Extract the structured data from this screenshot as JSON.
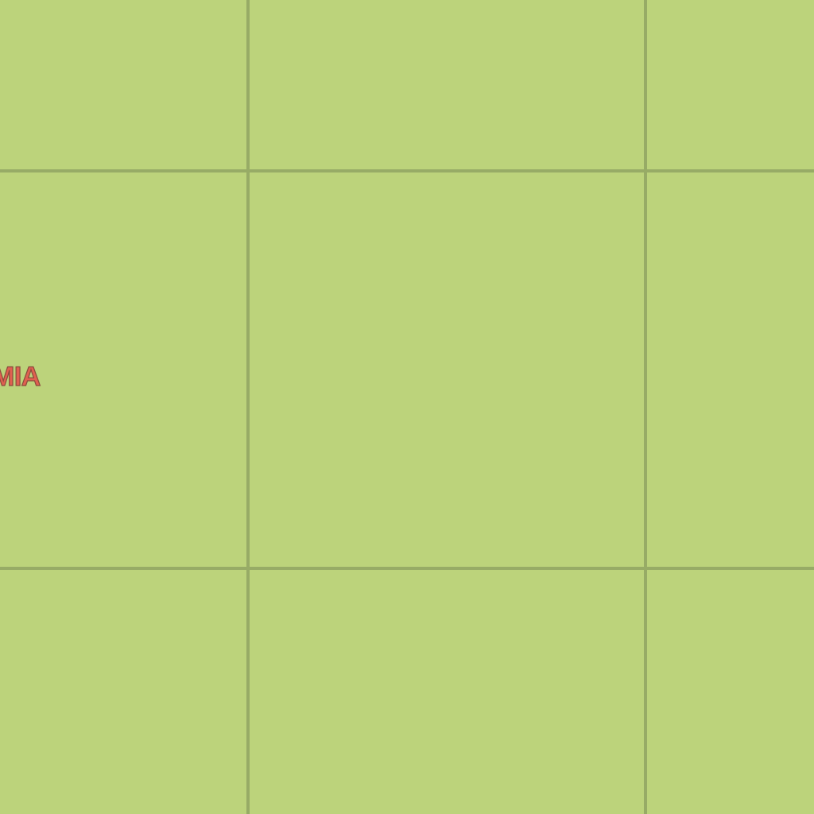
{
  "map": {
    "background_color": "#bcd37b",
    "grid_color": "#97ab66",
    "label_color": "#e06050",
    "labels": {
      "place": "MIA"
    }
  }
}
